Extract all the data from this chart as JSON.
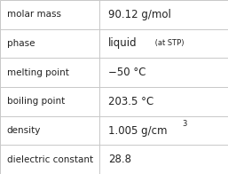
{
  "rows": [
    {
      "label": "molar mass",
      "value": "90.12 g/mol",
      "special": null
    },
    {
      "label": "phase",
      "value": null,
      "special": "phase"
    },
    {
      "label": "melting point",
      "value": "−50 °C",
      "special": null
    },
    {
      "label": "boiling point",
      "value": "203.5 °C",
      "special": null
    },
    {
      "label": "density",
      "value": null,
      "special": "density"
    },
    {
      "label": "dielectric constant",
      "value": "28.8",
      "special": null
    }
  ],
  "col_split": 0.435,
  "background": "#ffffff",
  "border_color": "#c8c8c8",
  "text_color": "#222222",
  "label_fontsize": 7.5,
  "value_fontsize": 8.5,
  "sub_fontsize": 6.0,
  "phase_main": "liquid",
  "phase_sub": " (at STP)",
  "density_main": "1.005 g/cm",
  "density_sup": "3"
}
